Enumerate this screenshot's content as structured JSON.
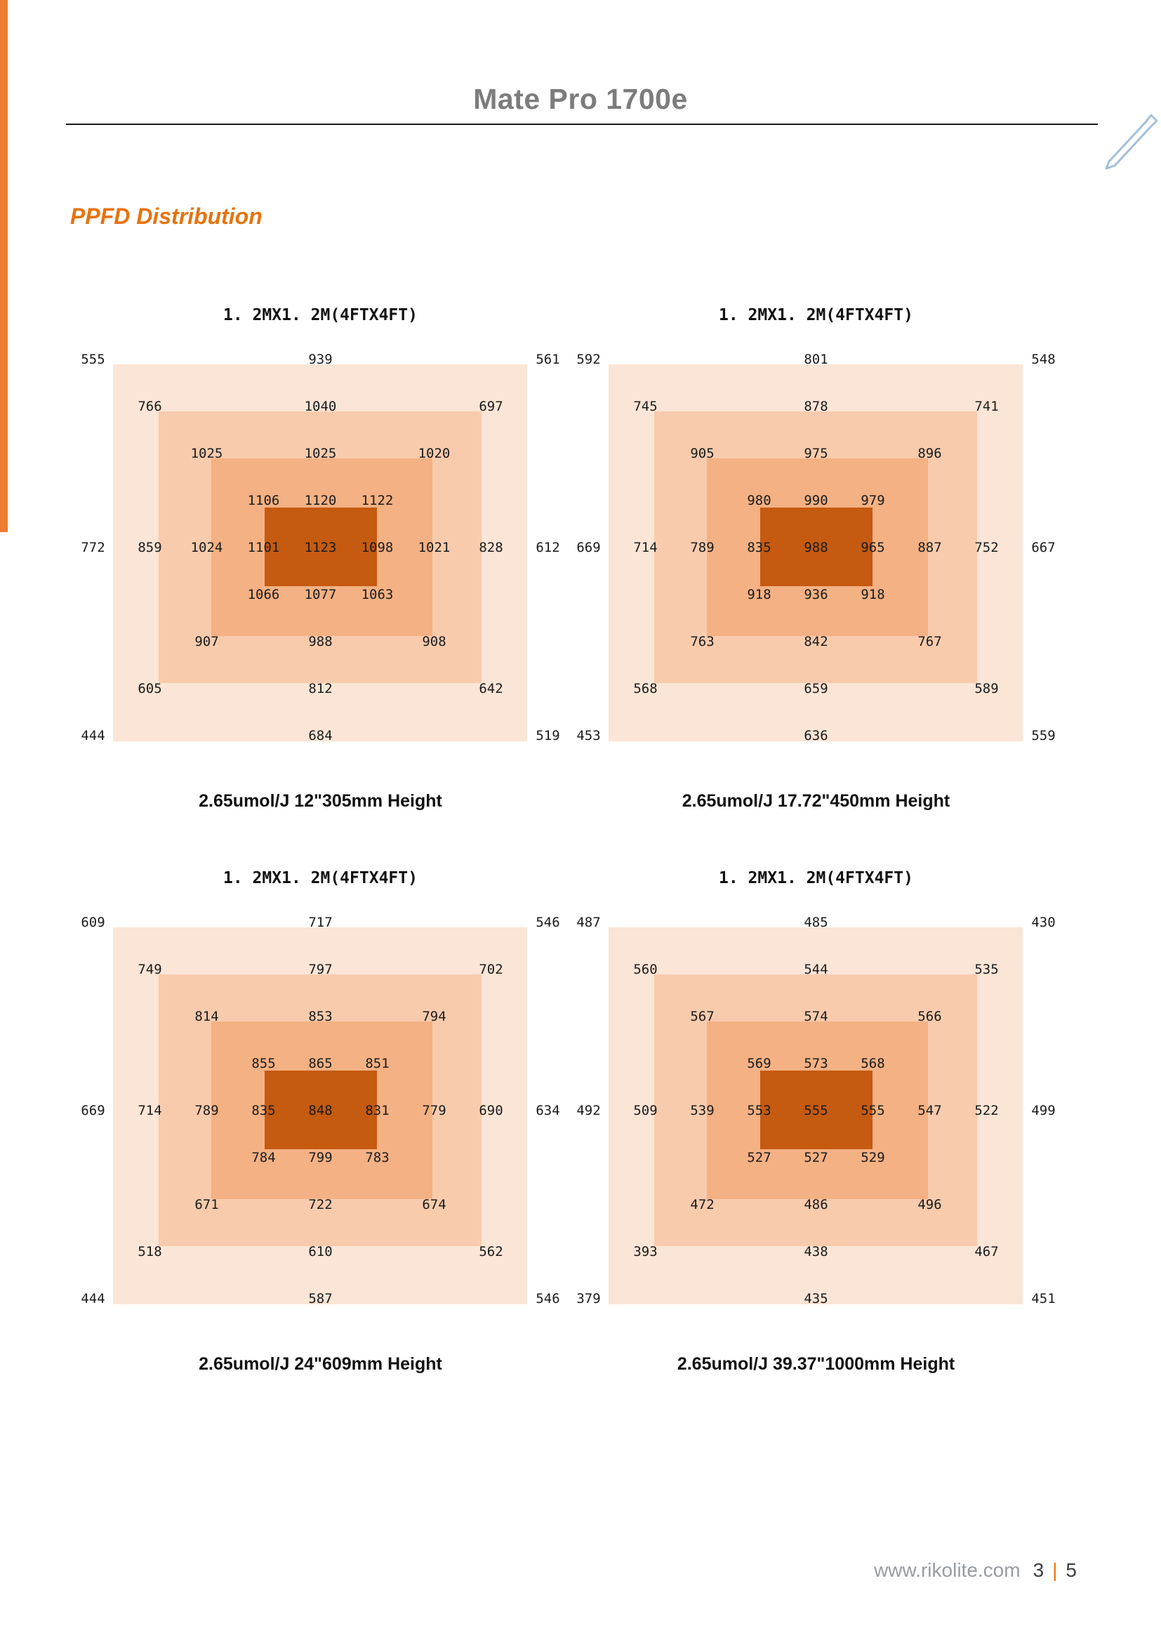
{
  "page": {
    "header": {
      "title": "Mate Pro 1700e"
    },
    "section_heading": "PPFD Distribution",
    "footer": {
      "website": "www.rikolite.com",
      "page_number": "3",
      "separator": "|",
      "total_pages": "5"
    }
  },
  "colors": {
    "accent_orange": "#E8720C",
    "left_stripe_orange": "#ED7D31",
    "header_gray": "#7C7C7C",
    "heat_level_1": "#FBE5D6",
    "heat_level_2": "#F8CBAD",
    "heat_level_3": "#F4B183",
    "heat_center": "#C55A11",
    "pen_icon_blue": "#A3BFD9"
  },
  "chart_data": [
    {
      "type": "heatmap",
      "title": "1. 2MX1. 2M(4FTX4FT)",
      "caption": "2.65umol/J 12\"305mm Height",
      "grid": {
        "cols": 9,
        "rows": 9
      },
      "layout": "PPFD values along diagonals plus center row and column; nested orange intensity rectangles",
      "rows": [
        [
          555,
          null,
          null,
          null,
          939,
          null,
          null,
          null,
          561
        ],
        [
          null,
          766,
          null,
          null,
          1040,
          null,
          null,
          697,
          null
        ],
        [
          null,
          null,
          1025,
          null,
          1025,
          null,
          1020,
          null,
          null
        ],
        [
          null,
          null,
          null,
          1106,
          1120,
          1122,
          null,
          null,
          null
        ],
        [
          772,
          859,
          1024,
          1101,
          1123,
          1098,
          1021,
          828,
          612
        ],
        [
          null,
          null,
          null,
          1066,
          1077,
          1063,
          null,
          null,
          null
        ],
        [
          null,
          null,
          907,
          null,
          988,
          null,
          908,
          null,
          null
        ],
        [
          null,
          605,
          null,
          null,
          812,
          null,
          null,
          642,
          null
        ],
        [
          444,
          null,
          null,
          null,
          684,
          null,
          null,
          null,
          519
        ]
      ]
    },
    {
      "type": "heatmap",
      "title": "1. 2MX1. 2M(4FTX4FT)",
      "caption": "2.65umol/J 17.72\"450mm Height",
      "grid": {
        "cols": 9,
        "rows": 9
      },
      "layout": "PPFD values along diagonals plus center row and column; nested orange intensity rectangles",
      "rows": [
        [
          592,
          null,
          null,
          null,
          801,
          null,
          null,
          null,
          548
        ],
        [
          null,
          745,
          null,
          null,
          878,
          null,
          null,
          741,
          null
        ],
        [
          null,
          null,
          905,
          null,
          975,
          null,
          896,
          null,
          null
        ],
        [
          null,
          null,
          null,
          980,
          990,
          979,
          null,
          null,
          null
        ],
        [
          669,
          714,
          789,
          835,
          988,
          965,
          887,
          752,
          667
        ],
        [
          null,
          null,
          null,
          918,
          936,
          918,
          null,
          null,
          null
        ],
        [
          null,
          null,
          763,
          null,
          842,
          null,
          767,
          null,
          null
        ],
        [
          null,
          568,
          null,
          null,
          659,
          null,
          null,
          589,
          null
        ],
        [
          453,
          null,
          null,
          null,
          636,
          null,
          null,
          null,
          559
        ]
      ]
    },
    {
      "type": "heatmap",
      "title": "1. 2MX1. 2M(4FTX4FT)",
      "caption": "2.65umol/J 24\"609mm Height",
      "grid": {
        "cols": 9,
        "rows": 9
      },
      "layout": "PPFD values along diagonals plus center row and column; nested orange intensity rectangles",
      "rows": [
        [
          609,
          null,
          null,
          null,
          717,
          null,
          null,
          null,
          546
        ],
        [
          null,
          749,
          null,
          null,
          797,
          null,
          null,
          702,
          null
        ],
        [
          null,
          null,
          814,
          null,
          853,
          null,
          794,
          null,
          null
        ],
        [
          null,
          null,
          null,
          855,
          865,
          851,
          null,
          null,
          null
        ],
        [
          669,
          714,
          789,
          835,
          848,
          831,
          779,
          690,
          634
        ],
        [
          null,
          null,
          null,
          784,
          799,
          783,
          null,
          null,
          null
        ],
        [
          null,
          null,
          671,
          null,
          722,
          null,
          674,
          null,
          null
        ],
        [
          null,
          518,
          null,
          null,
          610,
          null,
          null,
          562,
          null
        ],
        [
          444,
          null,
          null,
          null,
          587,
          null,
          null,
          null,
          546
        ]
      ]
    },
    {
      "type": "heatmap",
      "title": "1. 2MX1. 2M(4FTX4FT)",
      "caption": "2.65umol/J 39.37\"1000mm Height",
      "grid": {
        "cols": 9,
        "rows": 9
      },
      "layout": "PPFD values along diagonals plus center row and column; nested orange intensity rectangles",
      "rows": [
        [
          487,
          null,
          null,
          null,
          485,
          null,
          null,
          null,
          430
        ],
        [
          null,
          560,
          null,
          null,
          544,
          null,
          null,
          535,
          null
        ],
        [
          null,
          null,
          567,
          null,
          574,
          null,
          566,
          null,
          null
        ],
        [
          null,
          null,
          null,
          569,
          573,
          568,
          null,
          null,
          null
        ],
        [
          492,
          509,
          539,
          553,
          555,
          555,
          547,
          522,
          499
        ],
        [
          null,
          null,
          null,
          527,
          527,
          529,
          null,
          null,
          null
        ],
        [
          null,
          null,
          472,
          null,
          486,
          null,
          496,
          null,
          null
        ],
        [
          null,
          393,
          null,
          null,
          438,
          null,
          null,
          467,
          null
        ],
        [
          379,
          null,
          null,
          null,
          435,
          null,
          null,
          null,
          451
        ]
      ]
    }
  ]
}
